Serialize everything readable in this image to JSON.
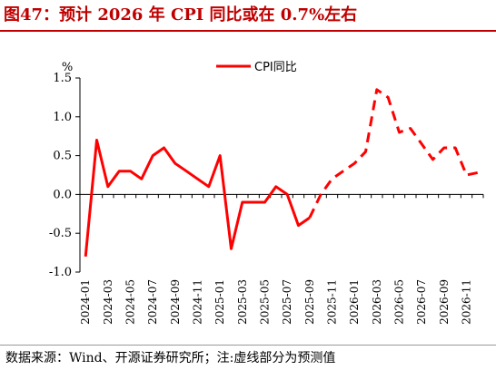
{
  "title": "图47：预计 2026 年 CPI 同比或在 0.7%左右",
  "source": "数据来源：Wind、开源证券研究所；注:虚线部分为预测值",
  "colors": {
    "accent": "#c00000",
    "series": "#ff0000",
    "axis": "#000000"
  },
  "chart_data": {
    "type": "line",
    "ylabel": "%",
    "ylim": [
      -1.0,
      1.5
    ],
    "yticks": [
      -1.0,
      -0.5,
      0.0,
      0.5,
      1.0,
      1.5
    ],
    "ytick_labels": [
      "-1.0",
      "-0.5",
      "0.0",
      "0.5",
      "1.0",
      "1.5"
    ],
    "xtick_labels": [
      "2024-01",
      "2024-03",
      "2024-05",
      "2024-07",
      "2024-09",
      "2024-11",
      "2025-01",
      "2025-03",
      "2025-05",
      "2025-07",
      "2025-09",
      "2025-11",
      "2026-01",
      "2026-03",
      "2026-05",
      "2026-07",
      "2026-09",
      "2026-11"
    ],
    "x": [
      "2024-01",
      "2024-02",
      "2024-03",
      "2024-04",
      "2024-05",
      "2024-06",
      "2024-07",
      "2024-08",
      "2024-09",
      "2024-10",
      "2024-11",
      "2024-12",
      "2025-01",
      "2025-02",
      "2025-03",
      "2025-04",
      "2025-05",
      "2025-06",
      "2025-07",
      "2025-08",
      "2025-09",
      "2025-10",
      "2025-11",
      "2025-12",
      "2026-01",
      "2026-02",
      "2026-03",
      "2026-04",
      "2026-05",
      "2026-06",
      "2026-07",
      "2026-08",
      "2026-09",
      "2026-10",
      "2026-11",
      "2026-12"
    ],
    "legend": "top-center",
    "grid": false,
    "series": [
      {
        "name": "CPI同比",
        "style": "solid",
        "values": [
          -0.8,
          0.7,
          0.1,
          0.3,
          0.3,
          0.2,
          0.5,
          0.6,
          0.4,
          0.3,
          0.2,
          0.1,
          0.5,
          -0.7,
          -0.1,
          -0.1,
          -0.1,
          0.1,
          0.0,
          -0.4,
          -0.3,
          null,
          null,
          null,
          null,
          null,
          null,
          null,
          null,
          null,
          null,
          null,
          null,
          null,
          null,
          null
        ]
      },
      {
        "name": "",
        "style": "dashed",
        "values": [
          null,
          null,
          null,
          null,
          null,
          null,
          null,
          null,
          null,
          null,
          null,
          null,
          null,
          null,
          null,
          null,
          null,
          null,
          null,
          null,
          -0.3,
          0.0,
          0.2,
          0.3,
          0.4,
          0.55,
          1.35,
          1.25,
          0.8,
          0.85,
          0.65,
          0.45,
          0.6,
          0.6,
          0.25,
          0.28
        ]
      }
    ]
  }
}
